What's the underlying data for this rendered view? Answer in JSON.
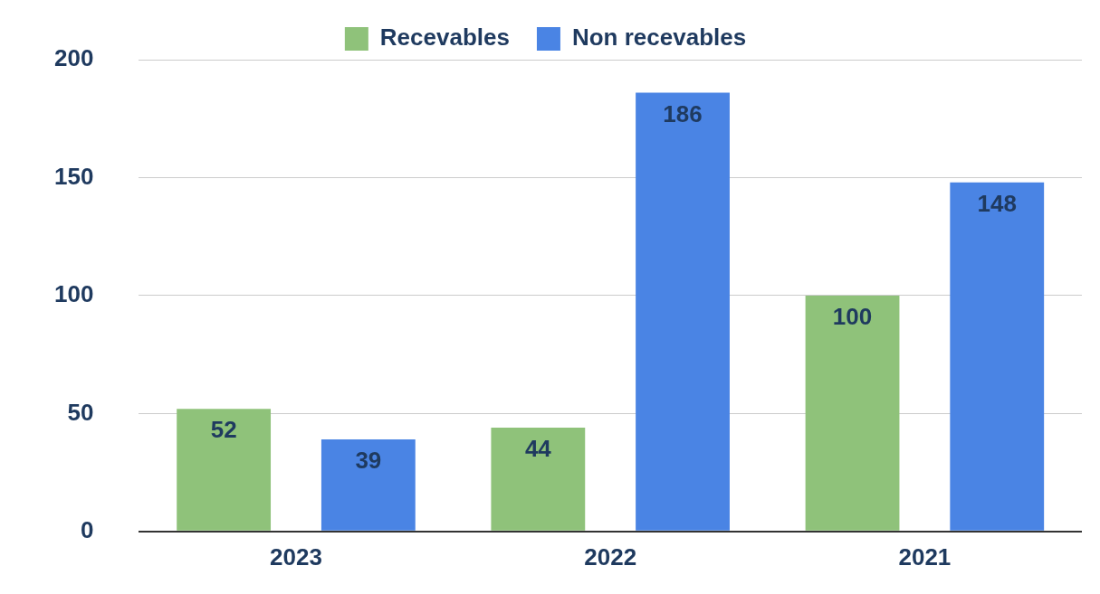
{
  "chart_data": {
    "type": "bar",
    "categories": [
      "2023",
      "2022",
      "2021"
    ],
    "series": [
      {
        "name": "Recevables",
        "color": "#8fc27a",
        "values": [
          52,
          44,
          100
        ]
      },
      {
        "name": "Non recevables",
        "color": "#4a84e4",
        "values": [
          39,
          186,
          148
        ]
      }
    ],
    "ylim": [
      0,
      200
    ],
    "yticks": [
      0,
      50,
      100,
      150,
      200
    ],
    "grid": "y",
    "legend": "top",
    "data_labels": true
  }
}
